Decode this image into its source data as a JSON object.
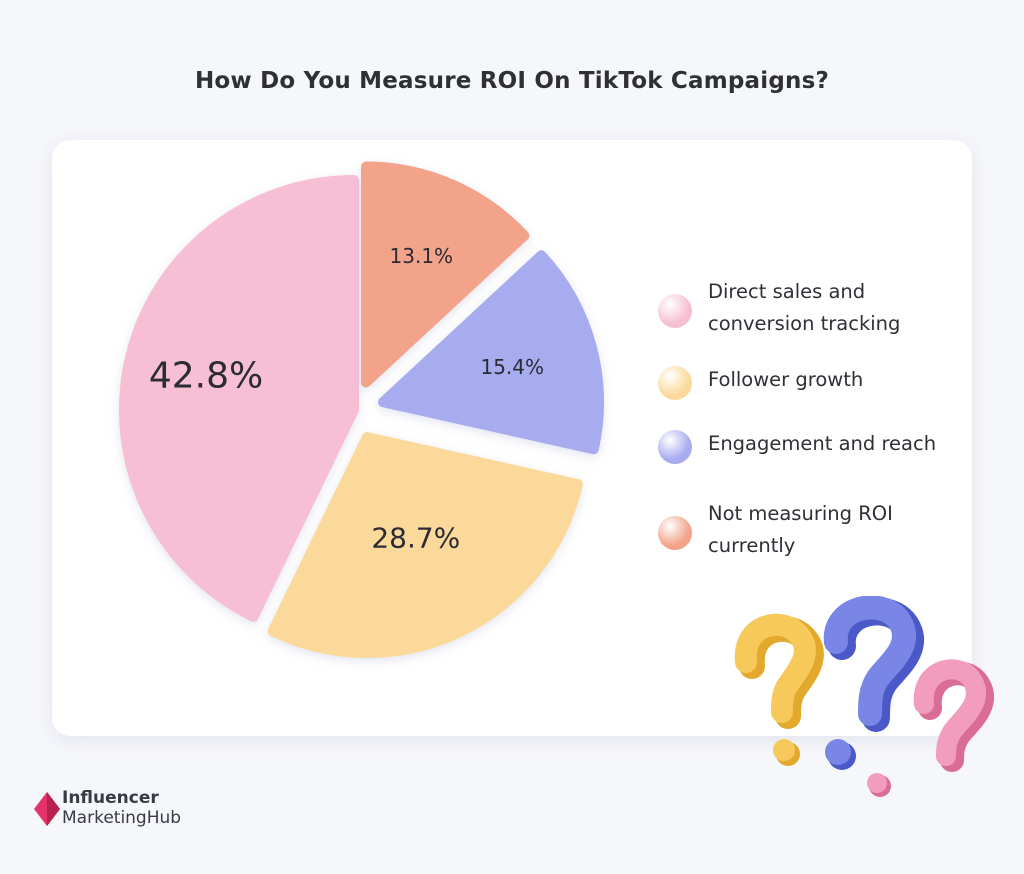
{
  "title": "How Do You Measure ROI On TikTok Campaigns?",
  "chart_data": {
    "type": "pie",
    "title": "How Do You Measure ROI On TikTok Campaigns?",
    "slices": [
      {
        "label": "Direct sales and conversion tracking",
        "label_lines": [
          "Direct sales and",
          "conversion tracking"
        ],
        "value": 42.8,
        "display": "42.8%",
        "color": "#f6bfd3",
        "exploded": false
      },
      {
        "label": "Follower growth",
        "label_lines": [
          "Follower growth"
        ],
        "value": 28.7,
        "display": "28.7%",
        "color": "#fbd99b",
        "exploded": true
      },
      {
        "label": "Engagement and reach",
        "label_lines": [
          "Engagement and reach"
        ],
        "value": 15.4,
        "display": "15.4%",
        "color": "#a7acef",
        "exploded": true
      },
      {
        "label": "Not measuring ROI currently",
        "label_lines": [
          "Not measuring ROI",
          "currently"
        ],
        "value": 13.1,
        "display": "13.1%",
        "color": "#f2a38a",
        "exploded": true
      }
    ],
    "legend_position": "right"
  },
  "brand": {
    "line1": "Influencer",
    "line2_a": "Marketing",
    "line2_b": "Hub",
    "accent": "#e2336b"
  },
  "decoration": {
    "icon": "question-marks-icon",
    "colors": [
      "#f5c04a",
      "#6f7be0",
      "#ef8fb3"
    ]
  }
}
